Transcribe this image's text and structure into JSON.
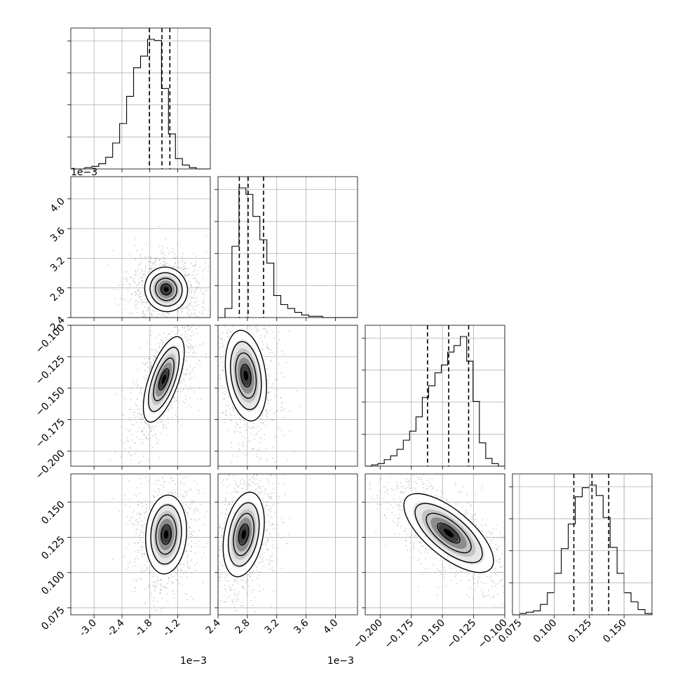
{
  "chart_data": {
    "type": "corner",
    "grid": true,
    "n_params": 4,
    "params": [
      {
        "range": [
          -3.5,
          -0.5
        ],
        "ticks": [
          "-3.0",
          "-2.4",
          "-1.8",
          "-1.2"
        ],
        "tick_values": [
          -3.0,
          -2.4,
          -1.8,
          -1.2
        ],
        "quantiles": [
          -1.81,
          -1.54,
          -1.37
        ],
        "scale_label": "1e−3"
      },
      {
        "range": [
          2.4,
          4.3
        ],
        "ticks": [
          "2.4",
          "2.8",
          "3.2",
          "3.6",
          "4.0"
        ],
        "tick_values": [
          2.4,
          2.8,
          3.2,
          3.6,
          4.0
        ],
        "quantiles": [
          2.69,
          2.81,
          3.02
        ],
        "scale_label": "1e−3"
      },
      {
        "range": [
          -0.212,
          -0.1
        ],
        "ticks": [
          "−0.200",
          "−0.175",
          "−0.150",
          "−0.125",
          "−0.100"
        ],
        "tick_values": [
          -0.2,
          -0.175,
          -0.15,
          -0.125,
          -0.1
        ],
        "quantiles": [
          -0.162,
          -0.145,
          -0.129
        ],
        "scale_label": ""
      },
      {
        "range": [
          0.07,
          0.17
        ],
        "ticks": [
          "0.075",
          "0.100",
          "0.125",
          "0.150"
        ],
        "tick_values": [
          0.075,
          0.1,
          0.125,
          0.15
        ],
        "quantiles": [
          0.114,
          0.127,
          0.139
        ],
        "scale_label": ""
      }
    ],
    "y_ticks_override": {
      "1": {
        "ticks": [
          "2.4",
          "2.8",
          "3.2",
          "3.6",
          "4.0"
        ],
        "tick_values": [
          2.4,
          2.8,
          3.2,
          3.6,
          4.0
        ]
      },
      "2": {
        "ticks": [
          "−0.100",
          "−0.125",
          "−0.150",
          "−0.175",
          "−0.200"
        ],
        "tick_values": [
          -0.1,
          -0.125,
          -0.15,
          -0.175,
          -0.2
        ]
      },
      "3": {
        "ticks": [
          "0.150",
          "0.125",
          "0.100",
          "0.075"
        ],
        "tick_values": [
          0.15,
          0.125,
          0.1,
          0.075
        ]
      }
    },
    "histograms": [
      [
        0.0,
        0.0,
        0.01,
        0.02,
        0.04,
        0.09,
        0.2,
        0.35,
        0.56,
        0.78,
        0.87,
        1.0,
        0.99,
        0.62,
        0.27,
        0.08,
        0.03,
        0.01,
        0.0,
        0.0
      ],
      [
        0.0,
        0.07,
        0.55,
        1.0,
        0.95,
        0.78,
        0.6,
        0.42,
        0.17,
        0.1,
        0.07,
        0.04,
        0.02,
        0.01,
        0.01,
        0.0,
        0.0,
        0.0,
        0.0,
        0.0
      ],
      [
        0.0,
        0.01,
        0.02,
        0.05,
        0.08,
        0.13,
        0.2,
        0.27,
        0.38,
        0.53,
        0.62,
        0.72,
        0.78,
        0.88,
        0.93,
        1.0,
        0.81,
        0.5,
        0.18,
        0.06,
        0.02,
        0.0
      ],
      [
        0.0,
        0.01,
        0.02,
        0.03,
        0.08,
        0.17,
        0.32,
        0.51,
        0.7,
        0.91,
        0.98,
        1.0,
        0.92,
        0.75,
        0.52,
        0.32,
        0.17,
        0.1,
        0.04,
        0.01
      ]
    ],
    "correlations": {
      "1,0": {
        "center": [
          -1.45,
          2.78
        ],
        "sd": [
          0.23,
          0.15
        ],
        "corr": -0.05
      },
      "2,0": {
        "center": [
          -1.5,
          -0.143
        ],
        "sd": [
          0.22,
          0.017
        ],
        "corr": 0.65
      },
      "2,1": {
        "center": [
          2.78,
          -0.14
        ],
        "sd": [
          0.14,
          0.018
        ],
        "corr": -0.25
      },
      "3,0": {
        "center": [
          -1.45,
          0.127
        ],
        "sd": [
          0.22,
          0.014
        ],
        "corr": 0.1
      },
      "3,1": {
        "center": [
          2.75,
          0.127
        ],
        "sd": [
          0.14,
          0.015
        ],
        "corr": 0.3
      },
      "3,2": {
        "center": [
          -0.145,
          0.128
        ],
        "sd": [
          0.018,
          0.014
        ],
        "corr": -0.7
      }
    },
    "contour_levels_sigma": [
      0.5,
      1.0,
      1.5,
      2.0
    ],
    "x_scale_labels": {
      "0": "1e−3",
      "1": "1e−3"
    },
    "y_scale_labels": {
      "1": "1e−3"
    }
  }
}
